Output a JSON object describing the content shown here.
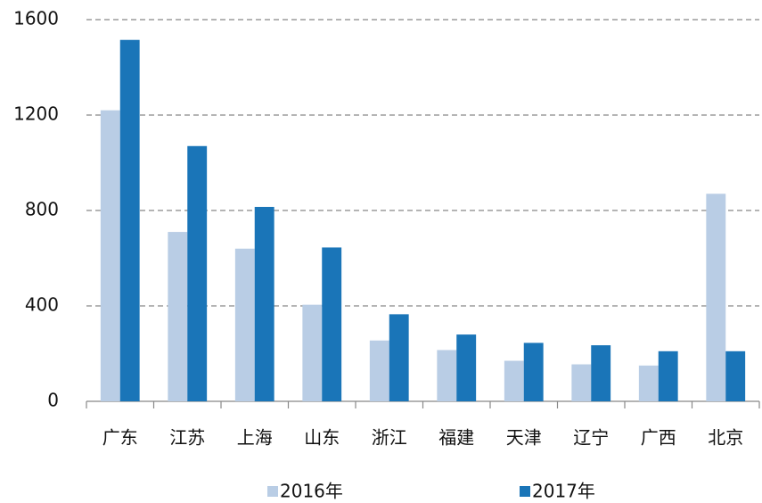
{
  "chart_data": {
    "type": "bar",
    "categories": [
      "广东",
      "江苏",
      "上海",
      "山东",
      "浙江",
      "福建",
      "天津",
      "辽宁",
      "广西",
      "北京"
    ],
    "series": [
      {
        "name": "2016年",
        "color": "#b9cde5",
        "values": [
          1220,
          710,
          640,
          405,
          255,
          215,
          170,
          155,
          150,
          870
        ]
      },
      {
        "name": "2017年",
        "color": "#1a75b8",
        "values": [
          1515,
          1070,
          815,
          645,
          365,
          280,
          245,
          235,
          210,
          210
        ]
      }
    ],
    "ylim": [
      0,
      1600
    ],
    "yticks": [
      0,
      400,
      800,
      1200,
      1600
    ],
    "grid": true,
    "legend": "bottom"
  }
}
